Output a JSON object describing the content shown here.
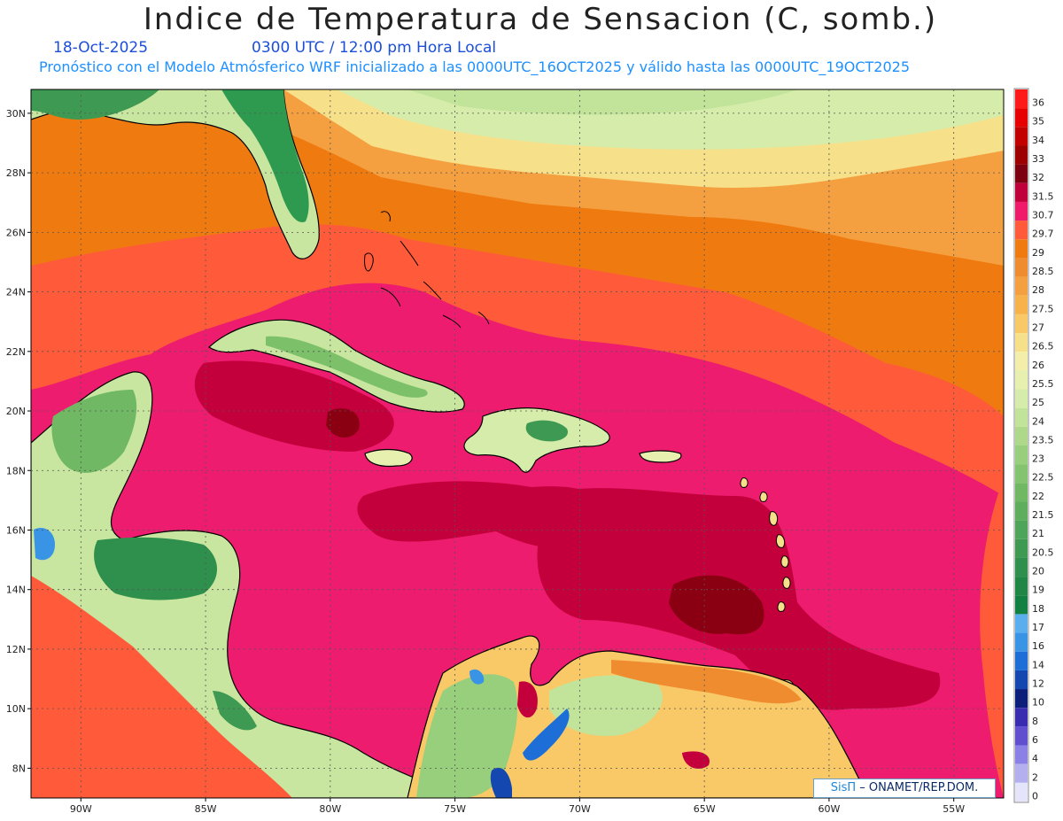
{
  "header": {
    "title": "Indice de Temperatura de Sensacion (C, somb.)",
    "date": "18-Oct-2025",
    "time": "0300 UTC / 12:00 pm Hora Local",
    "model_info": "Pronóstico con el Modelo Atmósferico WRF inicializado a las 0000UTC_16OCT2025 y válido hasta las  0000UTC_19OCT2025"
  },
  "map": {
    "extent": {
      "lon": [
        -92,
        -53
      ],
      "lat": [
        7,
        30.8
      ]
    },
    "lat_ticks": [
      {
        "value": 30,
        "label": "30N"
      },
      {
        "value": 28,
        "label": "28N"
      },
      {
        "value": 26,
        "label": "26N"
      },
      {
        "value": 24,
        "label": "24N"
      },
      {
        "value": 22,
        "label": "22N"
      },
      {
        "value": 20,
        "label": "20N"
      },
      {
        "value": 18,
        "label": "18N"
      },
      {
        "value": 16,
        "label": "16N"
      },
      {
        "value": 14,
        "label": "14N"
      },
      {
        "value": 12,
        "label": "12N"
      },
      {
        "value": 10,
        "label": "10N"
      },
      {
        "value": 8,
        "label": "8N"
      }
    ],
    "lon_ticks": [
      {
        "value": -90,
        "label": "90W"
      },
      {
        "value": -85,
        "label": "85W"
      },
      {
        "value": -80,
        "label": "80W"
      },
      {
        "value": -75,
        "label": "75W"
      },
      {
        "value": -70,
        "label": "70W"
      },
      {
        "value": -65,
        "label": "65W"
      },
      {
        "value": -60,
        "label": "60W"
      },
      {
        "value": -55,
        "label": "55W"
      }
    ]
  },
  "legend": {
    "levels": [
      {
        "label": "36",
        "color": "#ff1a1a"
      },
      {
        "label": "35",
        "color": "#e60000"
      },
      {
        "label": "34",
        "color": "#c20000"
      },
      {
        "label": "33",
        "color": "#9c0000"
      },
      {
        "label": "32",
        "color": "#7d0010"
      },
      {
        "label": "31.5",
        "color": "#c0003a"
      },
      {
        "label": "30.7",
        "color": "#f01a6a"
      },
      {
        "label": "29.7",
        "color": "#ff5a3a"
      },
      {
        "label": "29",
        "color": "#ef7a10"
      },
      {
        "label": "28.5",
        "color": "#f08c30"
      },
      {
        "label": "28",
        "color": "#f5a040"
      },
      {
        "label": "27.5",
        "color": "#f7b24a"
      },
      {
        "label": "27",
        "color": "#f9c968"
      },
      {
        "label": "26.5",
        "color": "#f7e08a"
      },
      {
        "label": "26",
        "color": "#f3eeaa"
      },
      {
        "label": "25.5",
        "color": "#e8f0b0"
      },
      {
        "label": "25",
        "color": "#d6ecaa"
      },
      {
        "label": "24",
        "color": "#c2e39a"
      },
      {
        "label": "23.5",
        "color": "#aed98a"
      },
      {
        "label": "23",
        "color": "#98cf7c"
      },
      {
        "label": "22.5",
        "color": "#84c470"
      },
      {
        "label": "22",
        "color": "#70b864"
      },
      {
        "label": "21.5",
        "color": "#5eae5e"
      },
      {
        "label": "21",
        "color": "#4ea458"
      },
      {
        "label": "20.5",
        "color": "#3e9a52"
      },
      {
        "label": "20",
        "color": "#2e904c"
      },
      {
        "label": "19",
        "color": "#1f8646"
      },
      {
        "label": "18",
        "color": "#128040"
      },
      {
        "label": "17",
        "color": "#5aaeee"
      },
      {
        "label": "16",
        "color": "#3a94e6"
      },
      {
        "label": "14",
        "color": "#1e6ed8"
      },
      {
        "label": "12",
        "color": "#1448b0"
      },
      {
        "label": "10",
        "color": "#0a1e7a"
      },
      {
        "label": "8",
        "color": "#3a2cb0"
      },
      {
        "label": "6",
        "color": "#6050d0"
      },
      {
        "label": "4",
        "color": "#8a80e6"
      },
      {
        "label": "2",
        "color": "#b4b0f0"
      },
      {
        "label": "0",
        "color": "#e4e4fa"
      }
    ]
  },
  "credit": {
    "brand": "SisΠ",
    "text": "– ONAMET/REP.DOM."
  },
  "colors": {
    "sea_hot": "#ed1c6e",
    "sea_very_hot": "#c4003c",
    "sea_warm": "#ff5a3a",
    "land_green": "#2e9a50",
    "land_light": "#c8e6a0",
    "coast": "#000000",
    "grid": "#666666"
  }
}
